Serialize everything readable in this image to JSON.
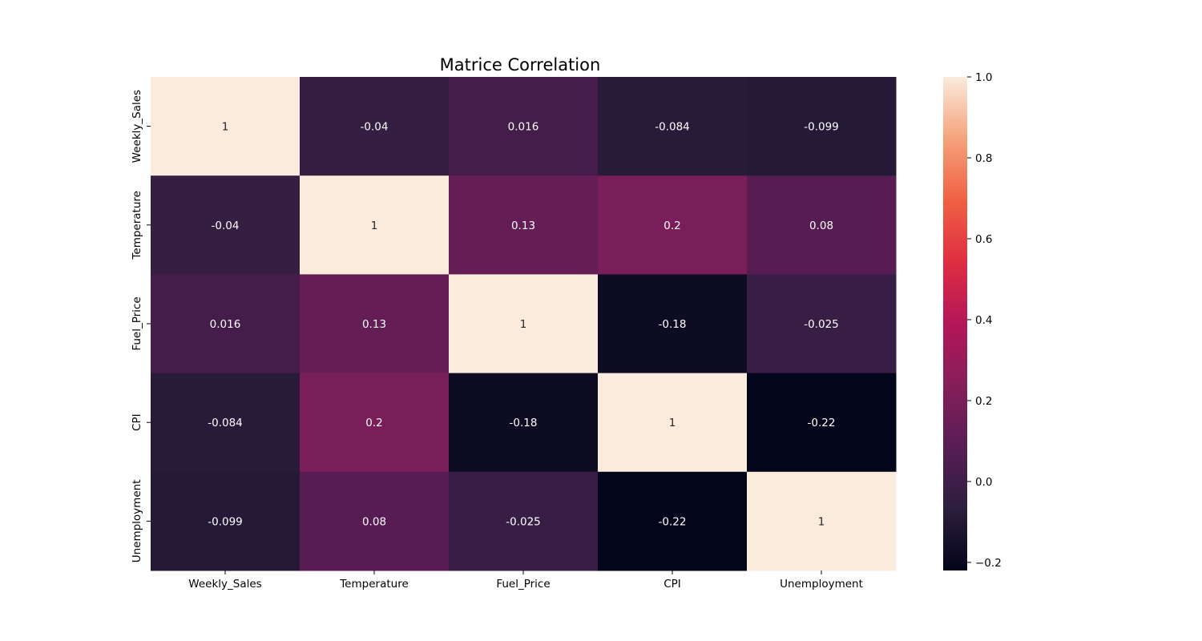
{
  "chart_data": {
    "type": "heatmap",
    "title": "Matrice Correlation",
    "xlabel": "",
    "ylabel": "",
    "x_categories": [
      "Weekly_Sales",
      "Temperature",
      "Fuel_Price",
      "CPI",
      "Unemployment"
    ],
    "y_categories": [
      "Weekly_Sales",
      "Temperature",
      "Fuel_Price",
      "CPI",
      "Unemployment"
    ],
    "values": [
      [
        1,
        -0.04,
        0.016,
        -0.084,
        -0.099
      ],
      [
        -0.04,
        1,
        0.13,
        0.2,
        0.08
      ],
      [
        0.016,
        0.13,
        1,
        -0.18,
        -0.025
      ],
      [
        -0.084,
        0.2,
        -0.18,
        1,
        -0.22
      ],
      [
        -0.099,
        0.08,
        -0.025,
        -0.22,
        1
      ]
    ],
    "labels": [
      [
        "1",
        "-0.04",
        "0.016",
        "-0.084",
        "-0.099"
      ],
      [
        "-0.04",
        "1",
        "0.13",
        "0.2",
        "0.08"
      ],
      [
        "0.016",
        "0.13",
        "1",
        "-0.18",
        "-0.025"
      ],
      [
        "-0.084",
        "0.2",
        "-0.18",
        "1",
        "-0.22"
      ],
      [
        "-0.099",
        "0.08",
        "-0.025",
        "-0.22",
        "1"
      ]
    ],
    "colormap": "rocket",
    "vmin": -0.22,
    "vmax": 1,
    "colorbar": {
      "ticks": [
        1.0,
        0.8,
        0.6,
        0.4,
        0.2,
        0.0,
        -0.2
      ],
      "tick_labels": [
        "1.0",
        "0.8",
        "0.6",
        "0.4",
        "0.2",
        "0.0",
        "−0.2"
      ],
      "placement": "right"
    },
    "annotated": true,
    "grid": false
  }
}
